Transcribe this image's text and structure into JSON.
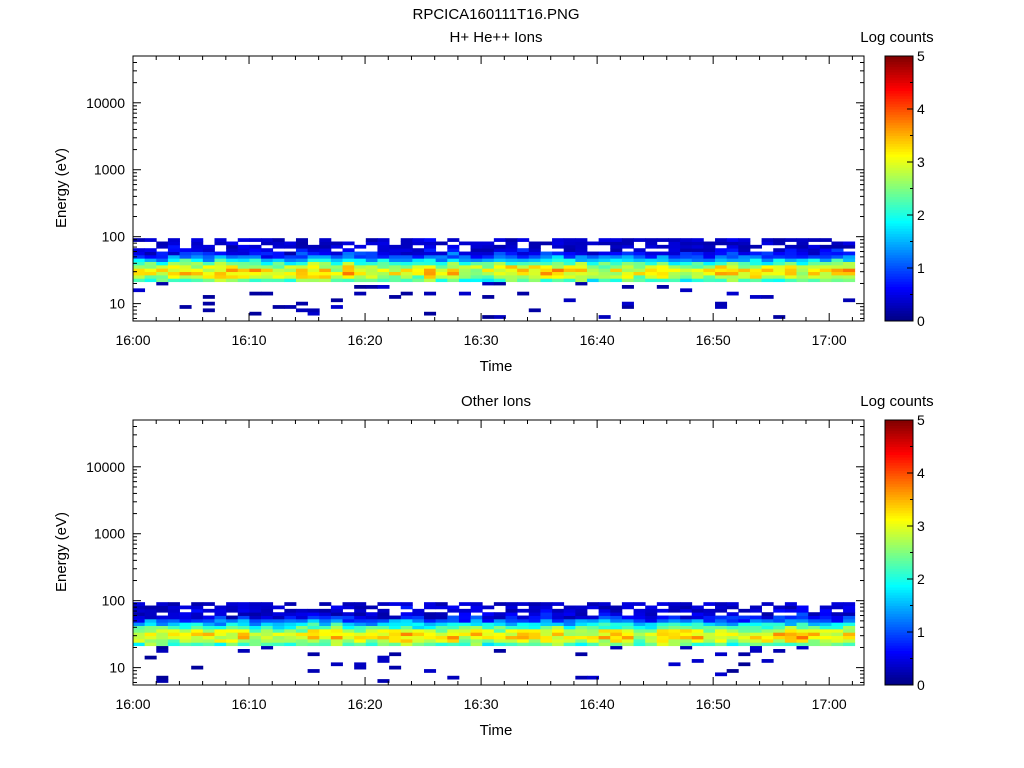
{
  "page_title": "RPCICA160111T16.PNG",
  "colorbar_ticks": [
    "0",
    "1",
    "2",
    "3",
    "4",
    "5"
  ],
  "chart_data": [
    {
      "type": "heatmap",
      "title": "H+ He++ Ions",
      "xlabel": "Time",
      "ylabel": "Energy (eV)",
      "x_range": [
        "16:00",
        "17:03"
      ],
      "x_ticks": [
        "16:00",
        "16:10",
        "16:20",
        "16:30",
        "16:40",
        "16:50",
        "17:00"
      ],
      "y_scale": "log",
      "y_range": [
        5.5,
        50000
      ],
      "y_ticks": [
        "10",
        "100",
        "1000",
        "10000"
      ],
      "y_tick_values": [
        10,
        100,
        1000,
        10000
      ],
      "colorbar_label": "Log counts",
      "colorbar_range": [
        0,
        5
      ],
      "colormap": "jet",
      "energy_band_eV": [
        6,
        95
      ],
      "peak_energy_eV": 30,
      "peak_log_counts": 3.2,
      "seed": 7
    },
    {
      "type": "heatmap",
      "title": "Other Ions",
      "xlabel": "Time",
      "ylabel": "Energy (eV)",
      "x_range": [
        "16:00",
        "17:03"
      ],
      "x_ticks": [
        "16:00",
        "16:10",
        "16:20",
        "16:30",
        "16:40",
        "16:50",
        "17:00"
      ],
      "y_scale": "log",
      "y_range": [
        5.5,
        50000
      ],
      "y_ticks": [
        "10",
        "100",
        "1000",
        "10000"
      ],
      "y_tick_values": [
        10,
        100,
        1000,
        10000
      ],
      "colorbar_label": "Log counts",
      "colorbar_range": [
        0,
        5
      ],
      "colormap": "jet",
      "energy_band_eV": [
        6,
        95
      ],
      "peak_energy_eV": 30,
      "peak_log_counts": 3.2,
      "seed": 23
    }
  ]
}
